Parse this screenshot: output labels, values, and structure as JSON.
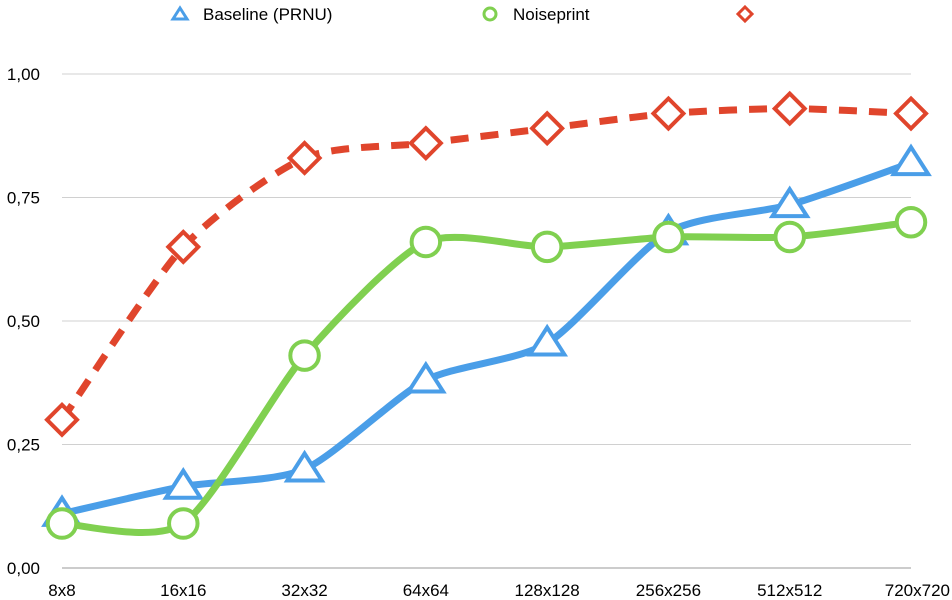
{
  "chart_data": {
    "type": "line",
    "title": "",
    "xlabel": "",
    "ylabel": "",
    "categories": [
      "8x8",
      "16x16",
      "32x32",
      "64x64",
      "128x128",
      "256x256",
      "512x512",
      "720x720"
    ],
    "ylim": [
      0,
      1
    ],
    "yticks": [
      0,
      0.25,
      0.5,
      0.75,
      1.0
    ],
    "ytick_labels": [
      "0,00",
      "0,25",
      "0,50",
      "0,75",
      "1,00"
    ],
    "grid": true,
    "legend_position": "top",
    "series": [
      {
        "name": "Baseline (PRNU)",
        "color": "#4a9ee8",
        "marker": "triangle",
        "dash": "solid",
        "values": [
          0.11,
          0.165,
          0.2,
          0.38,
          0.455,
          0.68,
          0.735,
          0.82
        ]
      },
      {
        "name": "Noiseprint",
        "color": "#80d050",
        "marker": "circle",
        "dash": "solid",
        "values": [
          0.09,
          0.09,
          0.43,
          0.66,
          0.65,
          0.67,
          0.67,
          0.7
        ]
      },
      {
        "name": "",
        "color": "#e0452c",
        "marker": "diamond",
        "dash": "dashed",
        "values": [
          0.3,
          0.65,
          0.83,
          0.86,
          0.89,
          0.92,
          0.93,
          0.92
        ]
      }
    ]
  }
}
